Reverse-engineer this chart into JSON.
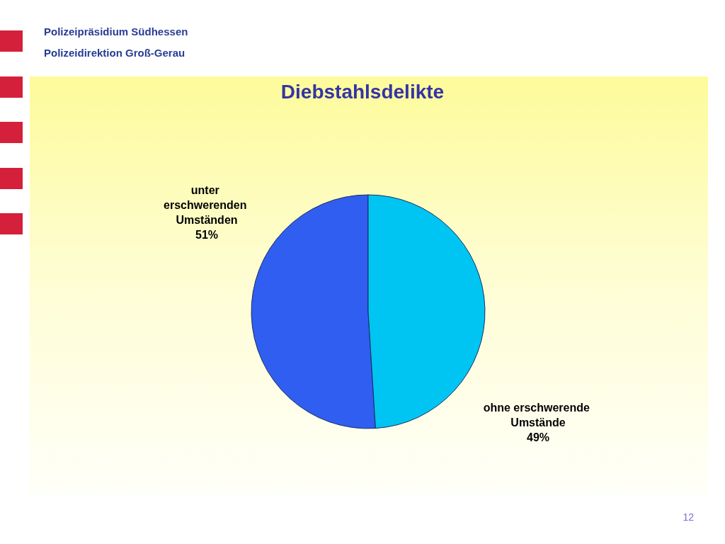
{
  "chart_data": {
    "type": "pie",
    "title": "Diebstahlsdelikte",
    "categories": [
      "unter erschwerenden Umständen",
      "ohne erschwerende Umstände"
    ],
    "values": [
      51,
      49
    ],
    "value_labels": [
      "51%",
      "49%"
    ],
    "colors": [
      "#2f5ef0",
      "#00c4f2"
    ],
    "annotations": [
      "Polizeipräsidium Südhessen",
      "Polizeidirektion Groß-Gerau",
      "12"
    ]
  }
}
